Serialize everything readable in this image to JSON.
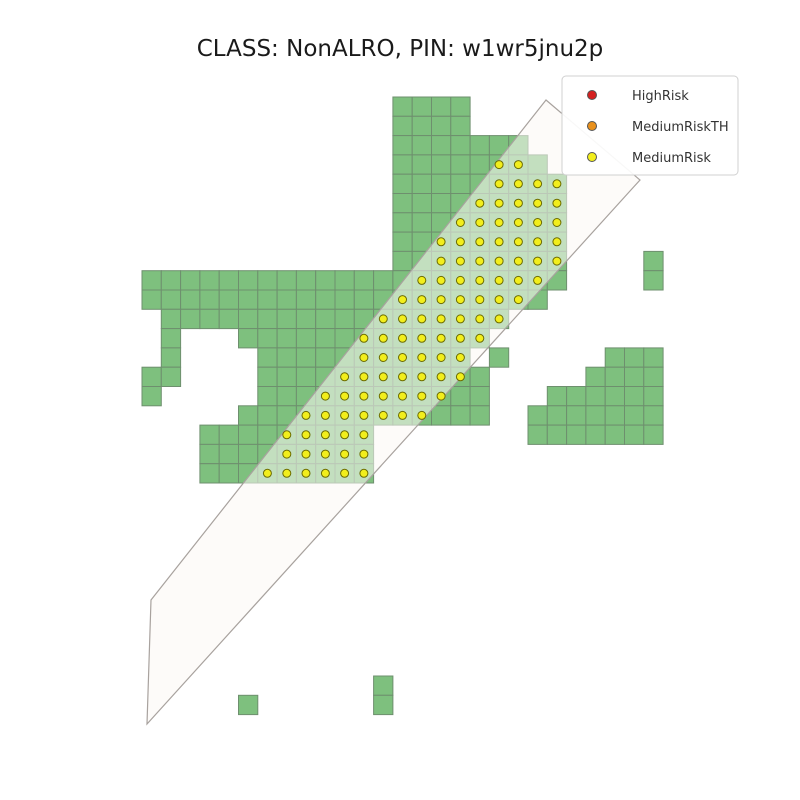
{
  "title": "CLASS: NonALRO, PIN: w1wr5jnu2p",
  "colors": {
    "cell_fill": "#7ec07e",
    "cell_stroke": "#6e8f6e",
    "band_fill": "#fbf7f4",
    "band_stroke": "#a8a29e",
    "high_risk": "#d42020",
    "medium_risk_th": "#e8901c",
    "medium_risk": "#f2ee1c",
    "point_stroke": "#6b6b00"
  },
  "legend": {
    "items": [
      {
        "label": "HighRisk",
        "color": "#d42020"
      },
      {
        "label": "MediumRiskTH",
        "color": "#e8901c"
      },
      {
        "label": "MediumRisk",
        "color": "#f2ee1c"
      }
    ]
  },
  "grid": {
    "rows": [
      {
        "r": 0,
        "runs": [
          [
            13,
            16
          ]
        ]
      },
      {
        "r": 1,
        "runs": [
          [
            13,
            16
          ]
        ]
      },
      {
        "r": 2,
        "runs": [
          [
            13,
            19
          ]
        ]
      },
      {
        "r": 3,
        "runs": [
          [
            13,
            20
          ]
        ]
      },
      {
        "r": 4,
        "runs": [
          [
            13,
            21
          ]
        ]
      },
      {
        "r": 5,
        "runs": [
          [
            13,
            21
          ]
        ]
      },
      {
        "r": 6,
        "runs": [
          [
            13,
            21
          ]
        ]
      },
      {
        "r": 7,
        "runs": [
          [
            13,
            21
          ]
        ]
      },
      {
        "r": 8,
        "runs": [
          [
            13,
            21
          ],
          [
            26,
            26
          ]
        ]
      },
      {
        "r": 9,
        "runs": [
          [
            0,
            21
          ],
          [
            26,
            26
          ]
        ]
      },
      {
        "r": 10,
        "runs": [
          [
            0,
            20
          ]
        ]
      },
      {
        "r": 11,
        "runs": [
          [
            1,
            18
          ]
        ]
      },
      {
        "r": 12,
        "runs": [
          [
            1,
            1
          ],
          [
            5,
            17
          ]
        ]
      },
      {
        "r": 13,
        "runs": [
          [
            1,
            1
          ],
          [
            6,
            16
          ],
          [
            18,
            18
          ],
          [
            24,
            26
          ]
        ]
      },
      {
        "r": 14,
        "runs": [
          [
            0,
            1
          ],
          [
            6,
            17
          ],
          [
            23,
            26
          ]
        ]
      },
      {
        "r": 15,
        "runs": [
          [
            0,
            0
          ],
          [
            6,
            17
          ],
          [
            21,
            26
          ]
        ]
      },
      {
        "r": 16,
        "runs": [
          [
            5,
            17
          ],
          [
            20,
            26
          ]
        ]
      },
      {
        "r": 17,
        "runs": [
          [
            3,
            11
          ],
          [
            20,
            26
          ]
        ]
      },
      {
        "r": 18,
        "runs": [
          [
            3,
            11
          ]
        ]
      },
      {
        "r": 19,
        "runs": [
          [
            3,
            11
          ]
        ]
      },
      {
        "r": 30,
        "runs": [
          [
            12,
            12
          ]
        ]
      },
      {
        "r": 31,
        "runs": [
          [
            5,
            5
          ],
          [
            12,
            12
          ]
        ]
      }
    ],
    "points": [
      {
        "r": 3,
        "runs": [
          [
            18,
            19
          ]
        ]
      },
      {
        "r": 4,
        "runs": [
          [
            18,
            21
          ]
        ]
      },
      {
        "r": 5,
        "runs": [
          [
            17,
            21
          ]
        ]
      },
      {
        "r": 6,
        "runs": [
          [
            16,
            21
          ]
        ]
      },
      {
        "r": 7,
        "runs": [
          [
            15,
            21
          ]
        ]
      },
      {
        "r": 8,
        "runs": [
          [
            15,
            21
          ]
        ]
      },
      {
        "r": 9,
        "runs": [
          [
            14,
            20
          ]
        ]
      },
      {
        "r": 10,
        "runs": [
          [
            13,
            19
          ]
        ]
      },
      {
        "r": 11,
        "runs": [
          [
            12,
            18
          ]
        ]
      },
      {
        "r": 12,
        "runs": [
          [
            11,
            17
          ]
        ]
      },
      {
        "r": 13,
        "runs": [
          [
            11,
            16
          ]
        ]
      },
      {
        "r": 14,
        "runs": [
          [
            10,
            16
          ]
        ]
      },
      {
        "r": 15,
        "runs": [
          [
            9,
            15
          ]
        ]
      },
      {
        "r": 16,
        "runs": [
          [
            8,
            14
          ]
        ]
      },
      {
        "r": 17,
        "runs": [
          [
            7,
            11
          ]
        ]
      },
      {
        "r": 18,
        "runs": [
          [
            7,
            11
          ]
        ]
      },
      {
        "r": 19,
        "runs": [
          [
            6,
            11
          ]
        ]
      }
    ]
  }
}
